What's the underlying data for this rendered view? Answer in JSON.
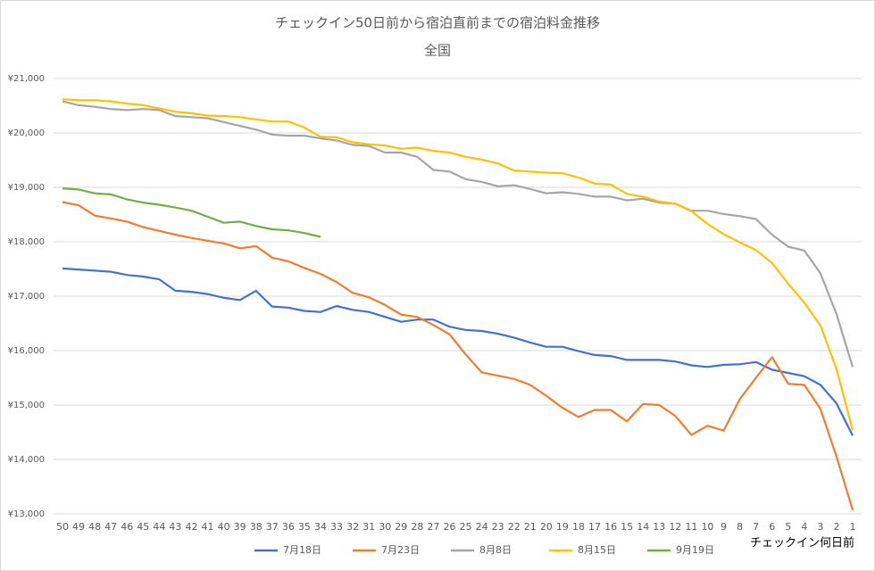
{
  "chart_data": {
    "type": "line",
    "title": "チェックイン50日前から宿泊直前までの宿泊料金推移",
    "subtitle": "全国",
    "x_label": "チェックイン何日前",
    "categories": [
      "50",
      "49",
      "48",
      "47",
      "46",
      "45",
      "44",
      "43",
      "42",
      "41",
      "40",
      "39",
      "38",
      "37",
      "36",
      "35",
      "34",
      "33",
      "32",
      "31",
      "30",
      "29",
      "28",
      "27",
      "26",
      "25",
      "24",
      "23",
      "22",
      "21",
      "20",
      "19",
      "18",
      "17",
      "16",
      "15",
      "14",
      "13",
      "12",
      "11",
      "10",
      "9",
      "8",
      "7",
      "6",
      "5",
      "4",
      "3",
      "2",
      "1"
    ],
    "ylim": [
      13000,
      21000
    ],
    "yticks": [
      {
        "value": 13000,
        "label": "¥13,000"
      },
      {
        "value": 14000,
        "label": "¥14,000"
      },
      {
        "value": 15000,
        "label": "¥15,000"
      },
      {
        "value": 16000,
        "label": "¥16,000"
      },
      {
        "value": 17000,
        "label": "¥17,000"
      },
      {
        "value": 18000,
        "label": "¥18,000"
      },
      {
        "value": 19000,
        "label": "¥19,000"
      },
      {
        "value": 20000,
        "label": "¥20,000"
      },
      {
        "value": 21000,
        "label": "¥21,000"
      }
    ],
    "grid": true,
    "legend": "bottom",
    "series": [
      {
        "name": "7月18日",
        "color": "#4472c4",
        "values": [
          17510,
          17490,
          17470,
          17450,
          17390,
          17360,
          17310,
          17100,
          17080,
          17040,
          16970,
          16930,
          17100,
          16810,
          16790,
          16730,
          16710,
          16820,
          16750,
          16710,
          16620,
          16530,
          16570,
          16570,
          16440,
          16380,
          16360,
          16310,
          16240,
          16150,
          16070,
          16070,
          15990,
          15920,
          15900,
          15830,
          15830,
          15830,
          15800,
          15730,
          15700,
          15740,
          15750,
          15790,
          15650,
          15590,
          15530,
          15370,
          15030,
          14440
        ]
      },
      {
        "name": "7月23日",
        "color": "#ed7d31",
        "values": [
          18730,
          18670,
          18480,
          18430,
          18370,
          18270,
          18200,
          18130,
          18070,
          18020,
          17970,
          17880,
          17920,
          17710,
          17640,
          17520,
          17410,
          17260,
          17060,
          16980,
          16840,
          16660,
          16620,
          16470,
          16300,
          15930,
          15600,
          15540,
          15480,
          15370,
          15170,
          14950,
          14780,
          14910,
          14910,
          14700,
          15020,
          15000,
          14800,
          14450,
          14620,
          14530,
          15110,
          15500,
          15880,
          15390,
          15370,
          14930,
          14050,
          13070
        ]
      },
      {
        "name": "8月8日",
        "color": "#a5a5a5",
        "values": [
          20580,
          20510,
          20480,
          20440,
          20420,
          20440,
          20420,
          20310,
          20290,
          20270,
          20200,
          20130,
          20060,
          19970,
          19950,
          19950,
          19900,
          19860,
          19780,
          19760,
          19640,
          19640,
          19560,
          19320,
          19290,
          19150,
          19100,
          19020,
          19040,
          18970,
          18890,
          18910,
          18880,
          18830,
          18830,
          18760,
          18790,
          18720,
          18700,
          18570,
          18570,
          18510,
          18470,
          18420,
          18130,
          17910,
          17840,
          17420,
          16670,
          15700
        ]
      },
      {
        "name": "8月15日",
        "color": "#ffc000",
        "values": [
          20620,
          20600,
          20600,
          20580,
          20540,
          20510,
          20450,
          20390,
          20360,
          20320,
          20310,
          20290,
          20250,
          20210,
          20210,
          20100,
          19930,
          19920,
          19830,
          19790,
          19770,
          19710,
          19730,
          19670,
          19640,
          19560,
          19510,
          19440,
          19310,
          19290,
          19270,
          19260,
          19180,
          19070,
          19050,
          18880,
          18830,
          18740,
          18700,
          18560,
          18330,
          18140,
          17990,
          17850,
          17610,
          17230,
          16880,
          16460,
          15660,
          14540
        ]
      },
      {
        "name": "9月19日",
        "color": "#70ad47",
        "values": [
          18980,
          18960,
          18890,
          18870,
          18780,
          18720,
          18680,
          18630,
          18570,
          18460,
          18350,
          18370,
          18290,
          18230,
          18210,
          18160,
          18090,
          null,
          null,
          null,
          null,
          null,
          null,
          null,
          null,
          null,
          null,
          null,
          null,
          null,
          null,
          null,
          null,
          null,
          null,
          null,
          null,
          null,
          null,
          null,
          null,
          null,
          null,
          null,
          null,
          null,
          null,
          null,
          null,
          null
        ]
      }
    ]
  }
}
